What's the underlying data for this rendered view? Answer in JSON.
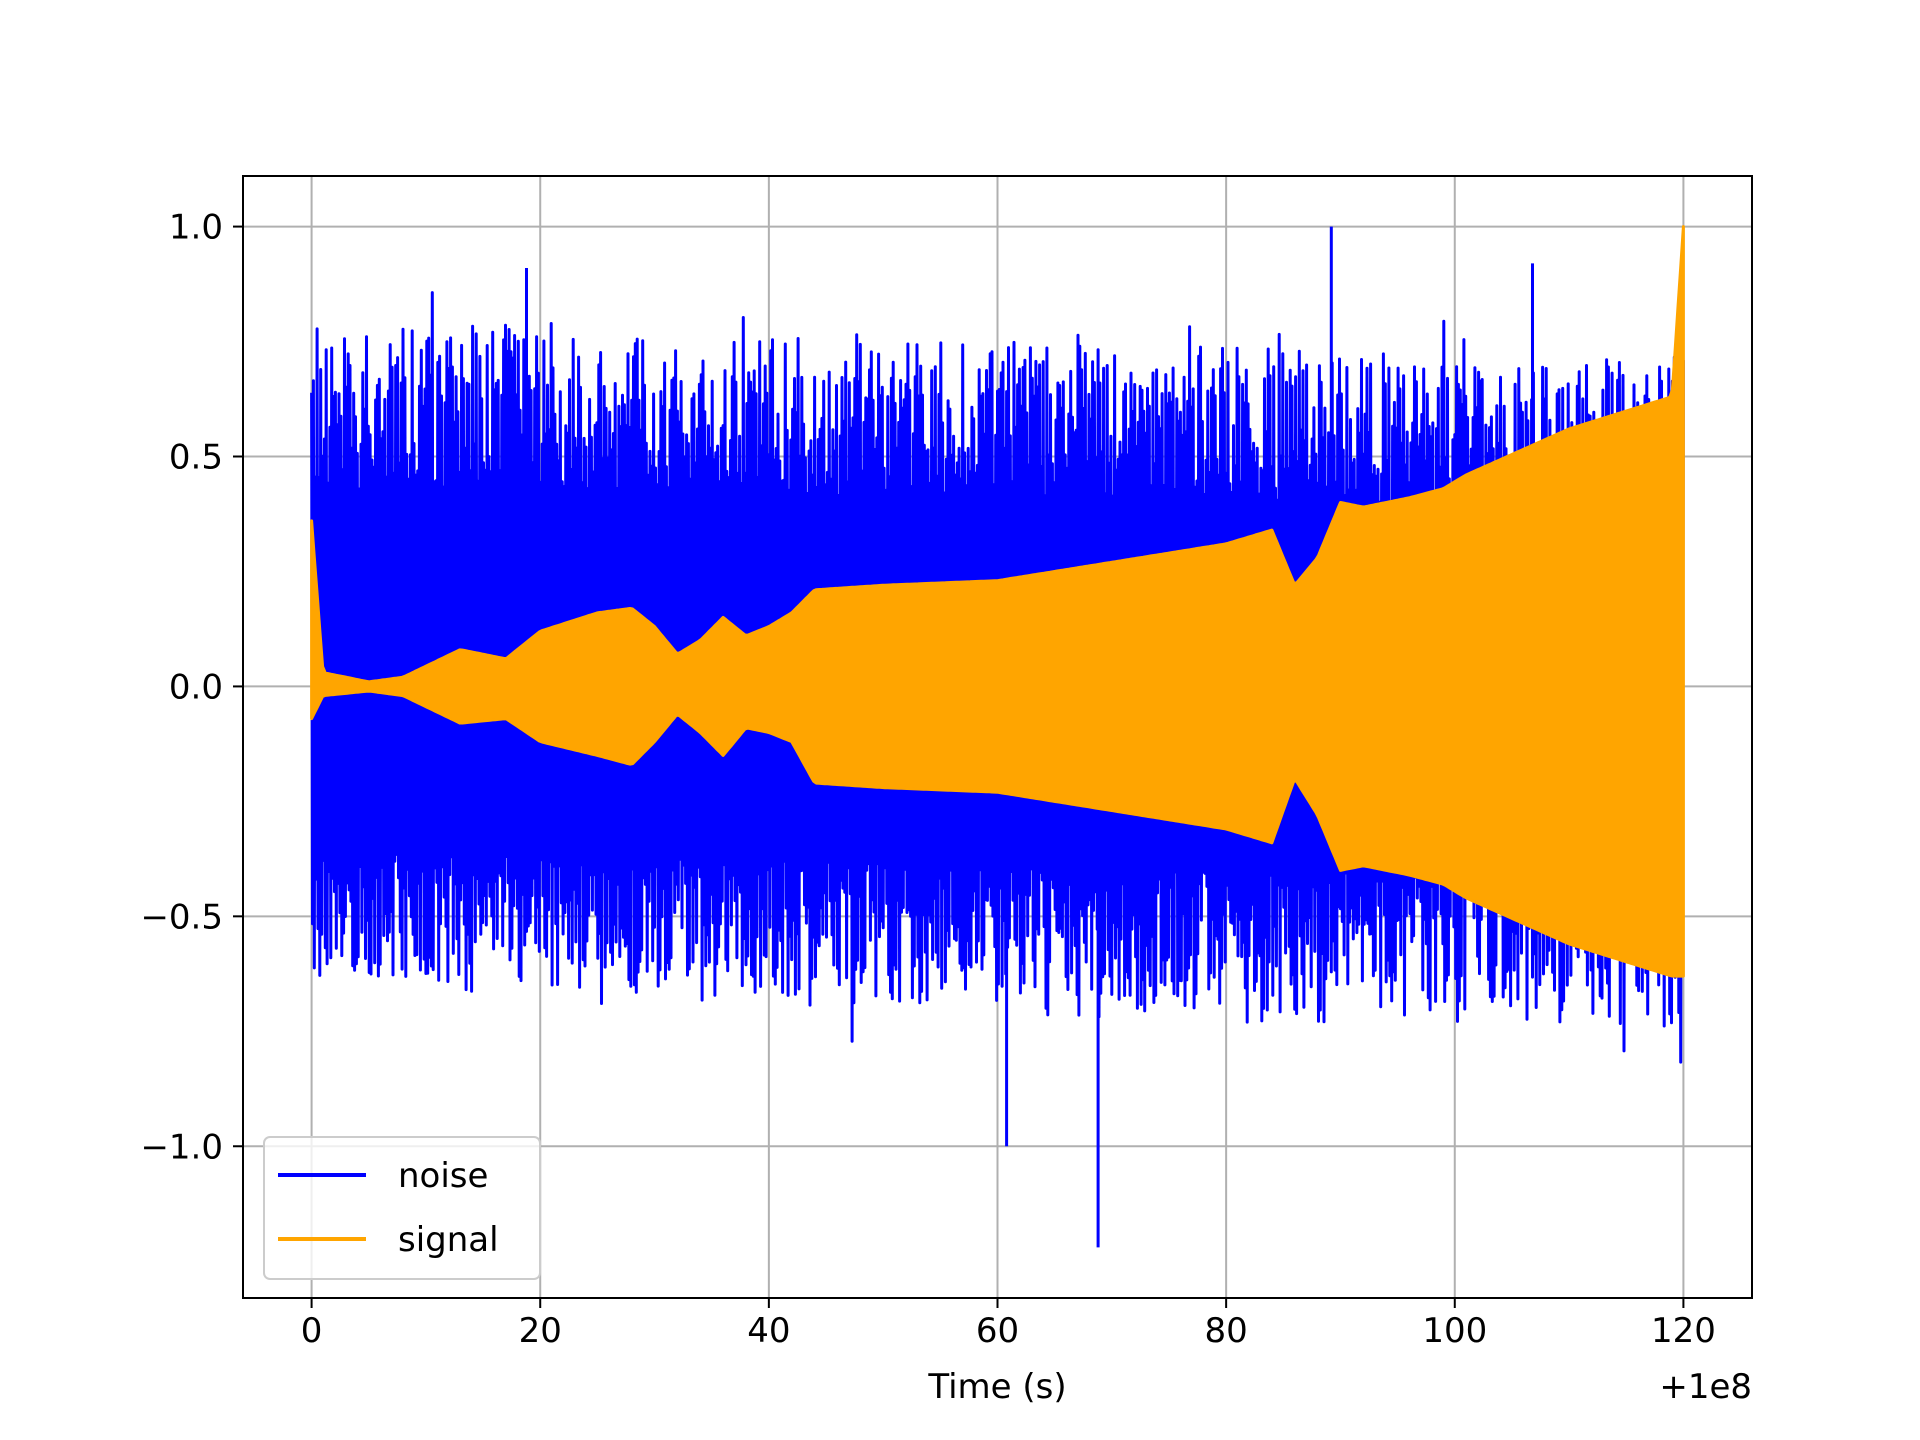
{
  "chart_data": {
    "type": "line",
    "title": "",
    "xlabel": "Time (s)",
    "ylabel": "",
    "x_offset_label": "+1e8",
    "xlim": [
      -6,
      126
    ],
    "ylim": [
      -1.33,
      1.11
    ],
    "x_ticks": [
      0,
      20,
      40,
      60,
      80,
      100,
      120
    ],
    "x_tick_labels": [
      "0",
      "20",
      "40",
      "60",
      "80",
      "100",
      "120"
    ],
    "y_ticks": [
      -1.0,
      -0.5,
      0.0,
      0.5,
      1.0
    ],
    "y_tick_labels": [
      "−1.0",
      "−0.5",
      "0.0",
      "0.5",
      "1.0"
    ],
    "grid": true,
    "legend_placement": "lower-left",
    "series": [
      {
        "name": "noise",
        "color": "#0000ff",
        "envelope": {
          "x": [
            0,
            10,
            20,
            30,
            40,
            50,
            60,
            70,
            80,
            90,
            100,
            110,
            120
          ],
          "upper": [
            0.78,
            0.78,
            0.79,
            0.77,
            0.76,
            0.75,
            0.75,
            0.74,
            0.74,
            0.73,
            0.72,
            0.71,
            0.72
          ],
          "lower": [
            -0.65,
            -0.66,
            -0.67,
            -0.68,
            -0.69,
            -0.7,
            -0.71,
            -0.72,
            -0.73,
            -0.73,
            -0.73,
            -0.73,
            -0.74
          ]
        },
        "spikes": [
          {
            "x": 89.2,
            "y": 1.0
          },
          {
            "x": 68.8,
            "y": -1.22
          },
          {
            "x": 60.8,
            "y": -1.0
          },
          {
            "x": 18.8,
            "y": 0.91
          },
          {
            "x": 106.8,
            "y": 0.92
          }
        ]
      },
      {
        "name": "signal",
        "color": "#ffa500",
        "envelope": {
          "x": [
            0,
            1,
            5,
            8,
            13,
            17,
            20,
            25,
            28,
            30,
            32,
            34,
            36,
            38,
            40,
            42,
            44,
            50,
            60,
            70,
            80,
            84,
            86,
            88,
            90,
            92,
            96,
            99,
            101,
            110,
            119,
            120
          ],
          "upper": [
            0.36,
            0.03,
            0.01,
            0.02,
            0.08,
            0.06,
            0.12,
            0.16,
            0.17,
            0.13,
            0.07,
            0.1,
            0.15,
            0.11,
            0.13,
            0.16,
            0.21,
            0.22,
            0.23,
            0.27,
            0.31,
            0.34,
            0.22,
            0.28,
            0.4,
            0.39,
            0.41,
            0.43,
            0.46,
            0.56,
            0.63,
            1.0
          ],
          "lower": [
            -0.07,
            -0.02,
            -0.01,
            -0.02,
            -0.08,
            -0.07,
            -0.12,
            -0.15,
            -0.17,
            -0.12,
            -0.06,
            -0.1,
            -0.15,
            -0.09,
            -0.1,
            -0.12,
            -0.21,
            -0.22,
            -0.23,
            -0.27,
            -0.31,
            -0.34,
            -0.2,
            -0.28,
            -0.4,
            -0.39,
            -0.41,
            -0.43,
            -0.46,
            -0.56,
            -0.63,
            -0.63
          ]
        }
      }
    ]
  }
}
